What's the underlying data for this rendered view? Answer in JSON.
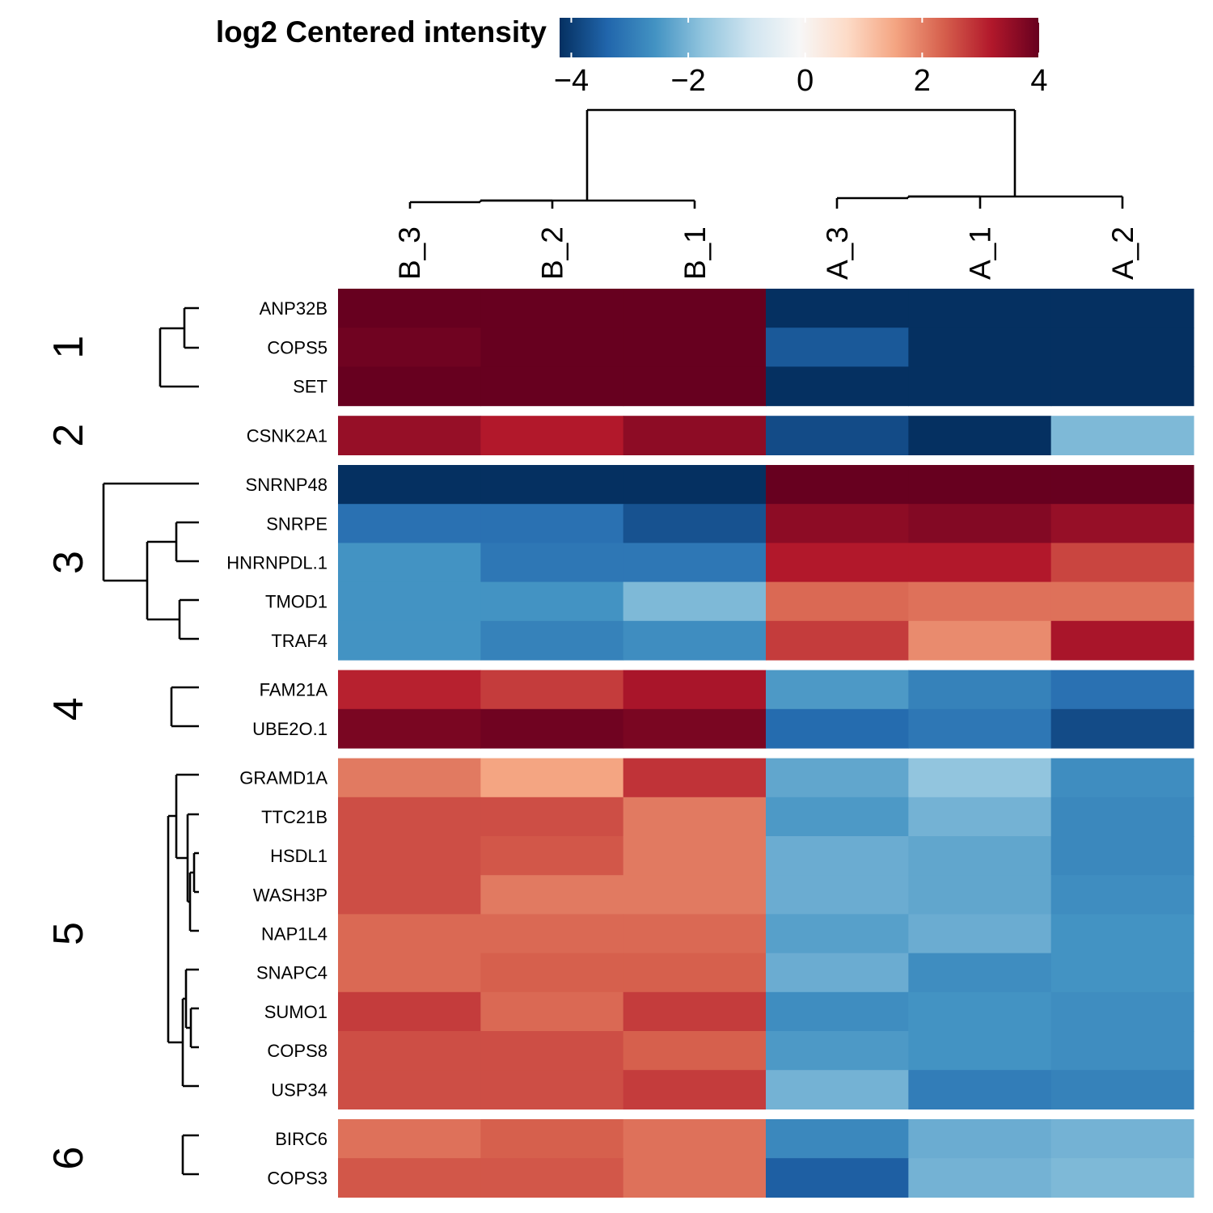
{
  "chart_data": {
    "type": "heatmap",
    "title": "",
    "legend": {
      "title": "log2 Centered intensity",
      "ticks": [
        "−4",
        "−2",
        "0",
        "2",
        "4"
      ],
      "tick_values": [
        -4,
        -2,
        0,
        2,
        4
      ],
      "range": [
        -4.2,
        4
      ],
      "placement": "top"
    },
    "columns": [
      "B_3",
      "B_2",
      "B_1",
      "A_3",
      "A_1",
      "A_2"
    ],
    "clusters": [
      {
        "label": "1",
        "rows": [
          "ANP32B",
          "COPS5",
          "SET"
        ],
        "values": [
          [
            4.1,
            4.1,
            4.1,
            -4.1,
            -4.1,
            -4.1
          ],
          [
            3.9,
            4.1,
            4.1,
            -3.4,
            -4.1,
            -4.1
          ],
          [
            4.1,
            4.1,
            4.1,
            -4.1,
            -4.1,
            -4.1
          ]
        ]
      },
      {
        "label": "2",
        "rows": [
          "CSNK2A1"
        ],
        "values": [
          [
            3.5,
            3.2,
            3.6,
            -3.6,
            -4.1,
            -1.8
          ]
        ]
      },
      {
        "label": "3",
        "rows": [
          "SNRNP48",
          "SNRPE",
          "HNRNPDL.1",
          "TMOD1",
          "TRAF4"
        ],
        "values": [
          [
            -4.1,
            -4.1,
            -4.1,
            4.1,
            4.1,
            4.1
          ],
          [
            -3.0,
            -3.0,
            -3.5,
            3.6,
            3.7,
            3.5
          ],
          [
            -2.4,
            -2.9,
            -2.9,
            3.2,
            3.2,
            2.7
          ],
          [
            -2.4,
            -2.4,
            -1.8,
            2.3,
            2.2,
            2.2
          ],
          [
            -2.4,
            -2.7,
            -2.5,
            2.8,
            1.9,
            3.3
          ]
        ]
      },
      {
        "label": "4",
        "rows": [
          "FAM21A",
          "UBE2O.1"
        ],
        "values": [
          [
            3.1,
            2.8,
            3.3,
            -2.3,
            -2.7,
            -3.0
          ],
          [
            3.8,
            3.9,
            3.8,
            -3.1,
            -2.9,
            -3.6
          ]
        ]
      },
      {
        "label": "5",
        "rows": [
          "GRAMD1A",
          "TTC21B",
          "HSDL1",
          "WASH3P",
          "NAP1L4",
          "SNAPC4",
          "SUMO1",
          "COPS8",
          "USP34"
        ],
        "values": [
          [
            2.1,
            1.6,
            2.9,
            -2.1,
            -1.6,
            -2.5
          ],
          [
            2.6,
            2.6,
            2.1,
            -2.3,
            -1.9,
            -2.6
          ],
          [
            2.6,
            2.5,
            2.1,
            -2.0,
            -2.1,
            -2.6
          ],
          [
            2.6,
            2.1,
            2.1,
            -2.0,
            -2.1,
            -2.5
          ],
          [
            2.3,
            2.3,
            2.3,
            -2.2,
            -2.0,
            -2.4
          ],
          [
            2.3,
            2.4,
            2.4,
            -2.0,
            -2.5,
            -2.4
          ],
          [
            2.8,
            2.3,
            2.8,
            -2.5,
            -2.4,
            -2.5
          ],
          [
            2.6,
            2.6,
            2.4,
            -2.3,
            -2.4,
            -2.5
          ],
          [
            2.6,
            2.6,
            2.8,
            -1.9,
            -2.8,
            -2.7
          ]
        ]
      },
      {
        "label": "6",
        "rows": [
          "BIRC6",
          "COPS3"
        ],
        "values": [
          [
            2.2,
            2.4,
            2.2,
            -2.6,
            -2.0,
            -1.9
          ],
          [
            2.5,
            2.5,
            2.2,
            -3.3,
            -1.9,
            -1.8
          ]
        ]
      }
    ],
    "colors": {
      "low": "#053061",
      "mid": "#f7f7f7",
      "high": "#67001f",
      "palette": [
        "#053061",
        "#2166ac",
        "#4393c3",
        "#92c5de",
        "#d1e5f0",
        "#f7f7f7",
        "#fddbc7",
        "#f4a582",
        "#d6604d",
        "#b2182b",
        "#67001f"
      ]
    }
  }
}
